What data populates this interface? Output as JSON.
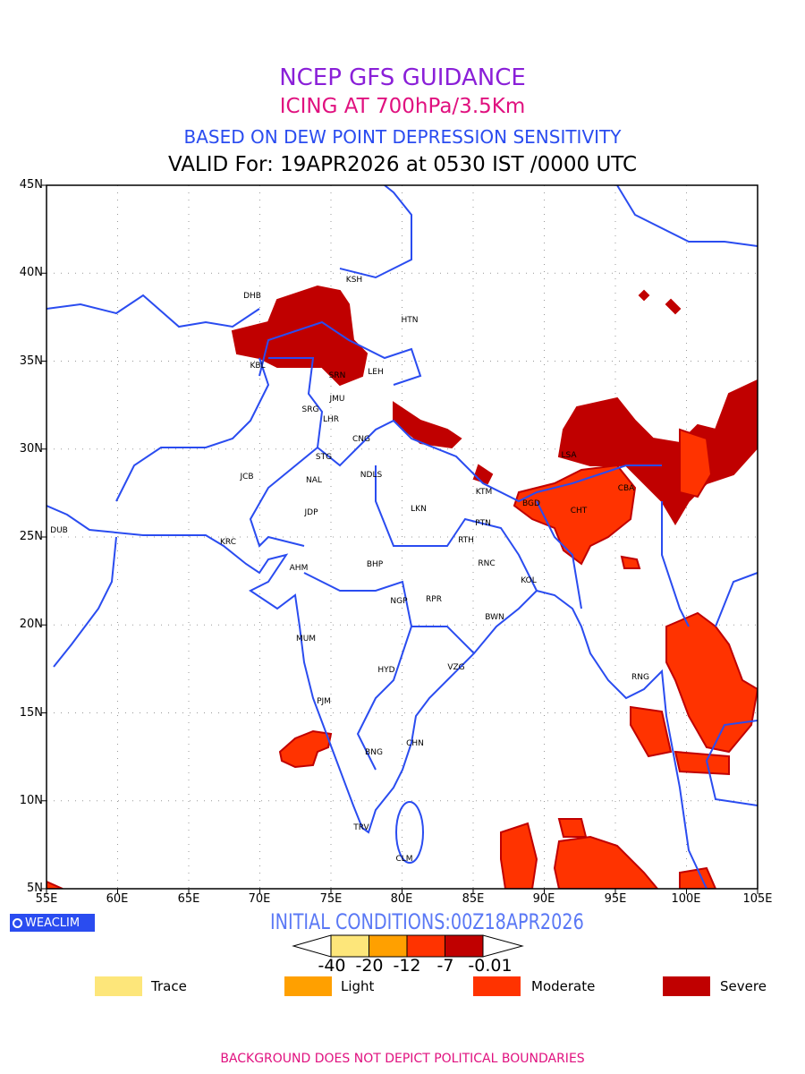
{
  "title": {
    "line1": "NCEP GFS GUIDANCE",
    "line2": "ICING AT 700hPa/3.5Km",
    "line3": "BASED ON DEW POINT DEPRESSION SENSITIVITY",
    "line4": "VALID For: 19APR2026 at 0530 IST /0000 UTC"
  },
  "axes": {
    "lat_labels": [
      "45N",
      "40N",
      "35N",
      "30N",
      "25N",
      "20N",
      "15N",
      "10N",
      "5N"
    ],
    "lon_labels": [
      "55E",
      "60E",
      "65E",
      "70E",
      "75E",
      "80E",
      "85E",
      "90E",
      "95E",
      "100E",
      "105E"
    ]
  },
  "stations": [
    "KSH",
    "DHB",
    "HTN",
    "KBL",
    "SRN",
    "LEH",
    "JMU",
    "SRG",
    "LHR",
    "CNG",
    "STG",
    "JCB",
    "NAL",
    "NDLS",
    "JDP",
    "LKN",
    "LSA",
    "KTM",
    "BGD",
    "CHT",
    "CBA",
    "PTN",
    "RTH",
    "RNC",
    "KOL",
    "BWN",
    "KRC",
    "AHM",
    "BHP",
    "NGP",
    "RPR",
    "MUM",
    "HYD",
    "VZG",
    "RNG",
    "PJM",
    "BNG",
    "CHN",
    "TRV",
    "CLM",
    "DUB"
  ],
  "logo": "WEACLIM",
  "initial_conditions": "INITIAL CONDITIONS:00Z18APR2026",
  "colorbar": {
    "ticks": [
      "-40",
      "-20",
      "-12",
      "-7",
      "-0.01"
    ],
    "colors": [
      "#fde67a",
      "#ffa000",
      "#ff3300",
      "#c00000"
    ]
  },
  "legend": [
    {
      "label": "Trace",
      "color": "#fde67a"
    },
    {
      "label": "Light",
      "color": "#ffa000"
    },
    {
      "label": "Moderate",
      "color": "#ff3300"
    },
    {
      "label": "Severe",
      "color": "#c00000"
    }
  ],
  "footer": "BACKGROUND DOES NOT DEPICT POLITICAL BOUNDARIES"
}
